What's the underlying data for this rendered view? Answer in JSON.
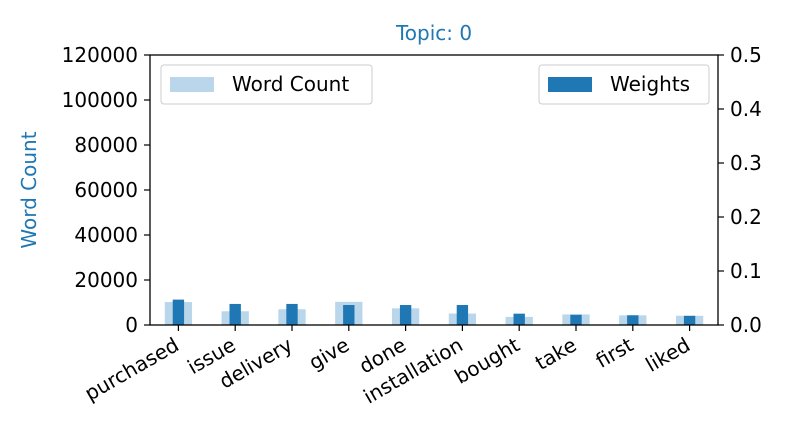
{
  "chart_data": {
    "type": "bar",
    "title": "Topic: 0",
    "ylabel": "Word Count",
    "ylabel_right": "",
    "xlabel": "",
    "categories": [
      "purchased",
      "issue",
      "delivery",
      "give",
      "done",
      "installation",
      "bought",
      "take",
      "first",
      "liked"
    ],
    "series": [
      {
        "name": "Word Count",
        "axis": "left",
        "values": [
          10200,
          6100,
          7000,
          10300,
          7400,
          5100,
          3600,
          4700,
          4300,
          4100
        ],
        "color": "#b9d6ea"
      },
      {
        "name": "Weights",
        "axis": "right",
        "values": [
          0.047,
          0.039,
          0.039,
          0.037,
          0.037,
          0.037,
          0.021,
          0.019,
          0.018,
          0.017
        ],
        "color": "#1f77b4"
      }
    ],
    "ylim": [
      0,
      120000
    ],
    "ylim_right": [
      0,
      0.5
    ],
    "yticks_left": [
      "0",
      "20000",
      "40000",
      "60000",
      "80000",
      "100000",
      "120000"
    ],
    "yticks_right": [
      "0.0",
      "0.1",
      "0.2",
      "0.3",
      "0.4",
      "0.5"
    ],
    "legend_left": {
      "position": "top-left",
      "label": "Word Count"
    },
    "legend_right": {
      "position": "top-right",
      "label": "Weights"
    },
    "grid": false,
    "title_color": "#1f77b4",
    "ylabel_color": "#1f77b4"
  }
}
